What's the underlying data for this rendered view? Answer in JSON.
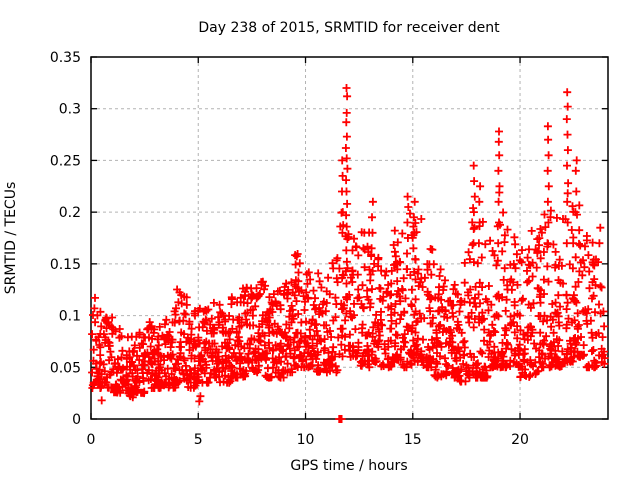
{
  "chart_data": {
    "type": "scatter",
    "title": "Day 238 of 2015, SRMTID for receiver dent",
    "xlabel": "GPS time / hours",
    "ylabel": "SRMTID / TECUs",
    "x_range": [
      0,
      24.1
    ],
    "y_range": [
      0,
      0.35
    ],
    "x_ticks": [
      0,
      5,
      10,
      15,
      20
    ],
    "x_tick_labels": [
      "0",
      "5",
      "10",
      "15",
      "20"
    ],
    "y_ticks": [
      0,
      0.05,
      0.1,
      0.15,
      0.2,
      0.25,
      0.3,
      0.35
    ],
    "y_tick_labels": [
      "0",
      "0.05",
      "0.1",
      "0.15",
      "0.2",
      "0.25",
      "0.3",
      "0.35"
    ],
    "grid": true,
    "grid_color": "#b3b3b3",
    "marker": {
      "shape": "plus",
      "color": "#ff0000",
      "size": 9
    },
    "series_name": "SRMTID",
    "density_bins": [
      [
        0.0,
        0.5,
        38,
        0.03,
        0.12
      ],
      [
        0.5,
        1.0,
        38,
        0.03,
        0.105
      ],
      [
        1.0,
        1.5,
        36,
        0.025,
        0.09
      ],
      [
        1.5,
        2.0,
        36,
        0.022,
        0.08
      ],
      [
        2.0,
        2.5,
        38,
        0.025,
        0.085
      ],
      [
        2.5,
        3.0,
        40,
        0.03,
        0.095
      ],
      [
        3.0,
        3.5,
        40,
        0.03,
        0.1
      ],
      [
        3.5,
        4.0,
        40,
        0.03,
        0.115
      ],
      [
        4.0,
        4.5,
        40,
        0.035,
        0.13
      ],
      [
        4.5,
        5.0,
        40,
        0.03,
        0.105
      ],
      [
        5.0,
        5.5,
        40,
        0.035,
        0.11
      ],
      [
        5.5,
        6.0,
        40,
        0.04,
        0.115
      ],
      [
        6.0,
        6.5,
        40,
        0.035,
        0.105
      ],
      [
        6.5,
        7.0,
        40,
        0.04,
        0.12
      ],
      [
        7.0,
        7.5,
        42,
        0.04,
        0.13
      ],
      [
        7.5,
        8.0,
        42,
        0.045,
        0.14
      ],
      [
        8.0,
        8.5,
        42,
        0.04,
        0.155
      ],
      [
        8.5,
        9.0,
        40,
        0.04,
        0.125
      ],
      [
        9.0,
        9.5,
        42,
        0.045,
        0.135
      ],
      [
        9.5,
        10.0,
        42,
        0.05,
        0.16
      ],
      [
        10.0,
        10.5,
        42,
        0.05,
        0.145
      ],
      [
        10.5,
        11.0,
        40,
        0.045,
        0.15
      ],
      [
        11.0,
        11.5,
        34,
        0.045,
        0.16
      ],
      [
        11.5,
        12.0,
        26,
        0.06,
        0.2
      ],
      [
        12.0,
        12.5,
        38,
        0.06,
        0.18
      ],
      [
        12.5,
        13.0,
        40,
        0.05,
        0.19
      ],
      [
        13.0,
        13.5,
        40,
        0.055,
        0.165
      ],
      [
        13.5,
        14.0,
        38,
        0.05,
        0.15
      ],
      [
        14.0,
        14.5,
        40,
        0.055,
        0.185
      ],
      [
        14.5,
        15.0,
        40,
        0.05,
        0.2
      ],
      [
        15.0,
        15.5,
        40,
        0.055,
        0.195
      ],
      [
        15.5,
        16.0,
        40,
        0.05,
        0.165
      ],
      [
        16.0,
        16.5,
        40,
        0.04,
        0.145
      ],
      [
        16.5,
        17.0,
        40,
        0.04,
        0.13
      ],
      [
        17.0,
        17.5,
        40,
        0.035,
        0.155
      ],
      [
        17.5,
        18.0,
        40,
        0.04,
        0.22
      ],
      [
        18.0,
        18.5,
        40,
        0.04,
        0.2
      ],
      [
        18.5,
        19.0,
        40,
        0.05,
        0.21
      ],
      [
        19.0,
        19.5,
        40,
        0.05,
        0.22
      ],
      [
        19.5,
        20.0,
        40,
        0.05,
        0.19
      ],
      [
        20.0,
        20.5,
        40,
        0.04,
        0.165
      ],
      [
        20.5,
        21.0,
        40,
        0.04,
        0.185
      ],
      [
        21.0,
        21.5,
        40,
        0.05,
        0.21
      ],
      [
        21.5,
        22.0,
        42,
        0.05,
        0.205
      ],
      [
        22.0,
        22.5,
        42,
        0.055,
        0.22
      ],
      [
        22.5,
        23.0,
        42,
        0.06,
        0.21
      ],
      [
        23.0,
        23.5,
        38,
        0.05,
        0.185
      ],
      [
        23.5,
        23.95,
        22,
        0.05,
        0.155
      ]
    ],
    "peak_points": [
      [
        11.72,
        0.18
      ],
      [
        11.74,
        0.2
      ],
      [
        11.7,
        0.22
      ],
      [
        11.73,
        0.235
      ],
      [
        11.71,
        0.25
      ],
      [
        11.9,
        0.102
      ],
      [
        11.94,
        0.118
      ],
      [
        11.91,
        0.131
      ],
      [
        11.88,
        0.143
      ],
      [
        11.93,
        0.152
      ],
      [
        11.9,
        0.163
      ],
      [
        11.95,
        0.174
      ],
      [
        11.92,
        0.186
      ],
      [
        11.89,
        0.197
      ],
      [
        11.94,
        0.208
      ],
      [
        11.91,
        0.22
      ],
      [
        11.89,
        0.231
      ],
      [
        11.95,
        0.242
      ],
      [
        11.92,
        0.252
      ],
      [
        11.88,
        0.262
      ],
      [
        11.93,
        0.273
      ],
      [
        11.9,
        0.287
      ],
      [
        11.92,
        0.296
      ],
      [
        11.94,
        0.312
      ],
      [
        11.91,
        0.32
      ],
      [
        13.08,
        0.165
      ],
      [
        13.12,
        0.18
      ],
      [
        13.1,
        0.195
      ],
      [
        13.14,
        0.21
      ],
      [
        14.73,
        0.16
      ],
      [
        14.77,
        0.175
      ],
      [
        14.75,
        0.19
      ],
      [
        14.79,
        0.205
      ],
      [
        14.76,
        0.215
      ],
      [
        15.03,
        0.165
      ],
      [
        15.07,
        0.18
      ],
      [
        15.05,
        0.195
      ],
      [
        15.09,
        0.21
      ],
      [
        17.83,
        0.17
      ],
      [
        17.87,
        0.185
      ],
      [
        17.85,
        0.2
      ],
      [
        17.89,
        0.215
      ],
      [
        17.86,
        0.23
      ],
      [
        17.84,
        0.245
      ],
      [
        18.08,
        0.17
      ],
      [
        18.12,
        0.19
      ],
      [
        18.1,
        0.21
      ],
      [
        18.14,
        0.225
      ],
      [
        18.98,
        0.17
      ],
      [
        19.02,
        0.19
      ],
      [
        19.0,
        0.21
      ],
      [
        19.04,
        0.225
      ],
      [
        18.99,
        0.24
      ],
      [
        19.03,
        0.255
      ],
      [
        19.01,
        0.268
      ],
      [
        19.02,
        0.278
      ],
      [
        21.28,
        0.17
      ],
      [
        21.32,
        0.19
      ],
      [
        21.3,
        0.21
      ],
      [
        21.34,
        0.225
      ],
      [
        21.29,
        0.24
      ],
      [
        21.33,
        0.255
      ],
      [
        21.31,
        0.27
      ],
      [
        21.3,
        0.283
      ],
      [
        22.18,
        0.17
      ],
      [
        22.22,
        0.19
      ],
      [
        22.2,
        0.21
      ],
      [
        22.24,
        0.228
      ],
      [
        22.19,
        0.245
      ],
      [
        22.23,
        0.26
      ],
      [
        22.21,
        0.275
      ],
      [
        22.18,
        0.29
      ],
      [
        22.22,
        0.302
      ],
      [
        22.2,
        0.316
      ],
      [
        22.58,
        0.2
      ],
      [
        22.62,
        0.22
      ],
      [
        22.6,
        0.24
      ],
      [
        22.64,
        0.25
      ],
      [
        23.7,
        0.17
      ],
      [
        23.74,
        0.185
      ],
      [
        0.5,
        0.018
      ],
      [
        1.95,
        0.021
      ],
      [
        5.05,
        0.017
      ],
      [
        5.1,
        0.022
      ]
    ],
    "zero_points": [
      11.57,
      11.63,
      11.68
    ]
  }
}
